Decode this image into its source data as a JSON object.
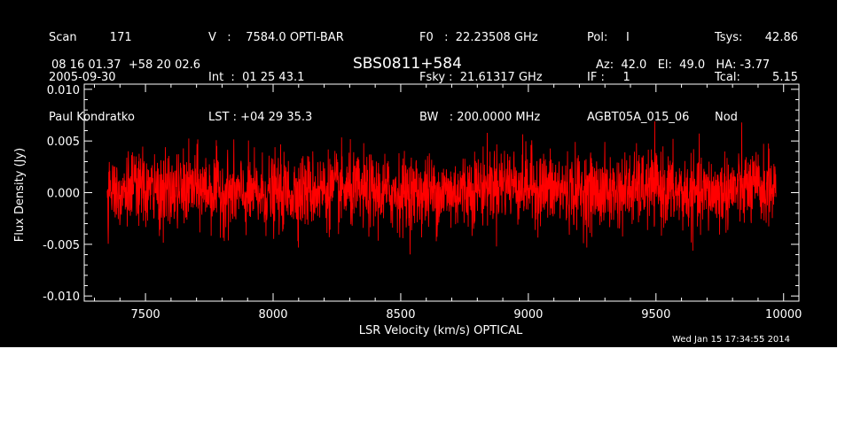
{
  "header": {
    "col1": [
      "Scan         171",
      "2005-09-30",
      "Paul Kondratko"
    ],
    "col2": [
      "V   :    7584.0 OPTI-BAR",
      "Int  :  01 25 43.1",
      "LST : +04 29 35.3"
    ],
    "col3": [
      "F0   :  22.23508 GHz",
      "Fsky :  21.61317 GHz",
      "BW   : 200.0000 MHz"
    ],
    "col4": [
      "Pol:     I",
      "IF :     1",
      "AGBT05A_015_06"
    ],
    "col5": [
      "Tsys:",
      "Tcal:",
      "Nod"
    ],
    "col5_values": [
      "42.86",
      "5.15",
      ""
    ],
    "coords": "08 16 01.37  +58 20 02.6",
    "azelha": "Az:  42.0   El:  49.0   HA: -3.77",
    "timestamp": "Wed Jan 15 17:34:55 2014"
  },
  "chart_data": {
    "type": "line",
    "title": "SBS0811+584",
    "xlabel": "LSR Velocity (km/s) OPTICAL",
    "ylabel": "Flux Density (Jy)",
    "xlim": [
      7260,
      10060
    ],
    "ylim": [
      -0.0105,
      0.0105
    ],
    "x_ticks": [
      7500,
      8000,
      8500,
      9000,
      9500,
      10000
    ],
    "x_tick_labels": [
      "7500",
      "8000",
      "8500",
      "9000",
      "9500",
      "10000"
    ],
    "y_ticks": [
      -0.01,
      -0.005,
      0.0,
      0.005,
      0.01
    ],
    "y_tick_labels": [
      "-0.010",
      "-0.005",
      "0.000",
      "0.005",
      "0.010"
    ],
    "grid": false,
    "series": [
      {
        "color": "#ff0000",
        "x_range": [
          7350,
          9970
        ],
        "noise_rms": 0.0018,
        "mean": 0.0,
        "x": [
          7350,
          7600,
          7700,
          7900,
          8200,
          8400,
          8700,
          8900,
          9100,
          9300,
          9500,
          9650,
          9800,
          9970
        ],
        "y": [
          0.0005,
          0.0,
          0.0005,
          -0.0003,
          0.0003,
          0.0,
          0.0,
          0.001,
          0.0003,
          0.0,
          0.0005,
          -0.0003,
          0.0003,
          0.0005
        ]
      }
    ]
  },
  "colors": {
    "background": "#000000",
    "axes": "#ffffff",
    "trace": "#ff0000"
  }
}
